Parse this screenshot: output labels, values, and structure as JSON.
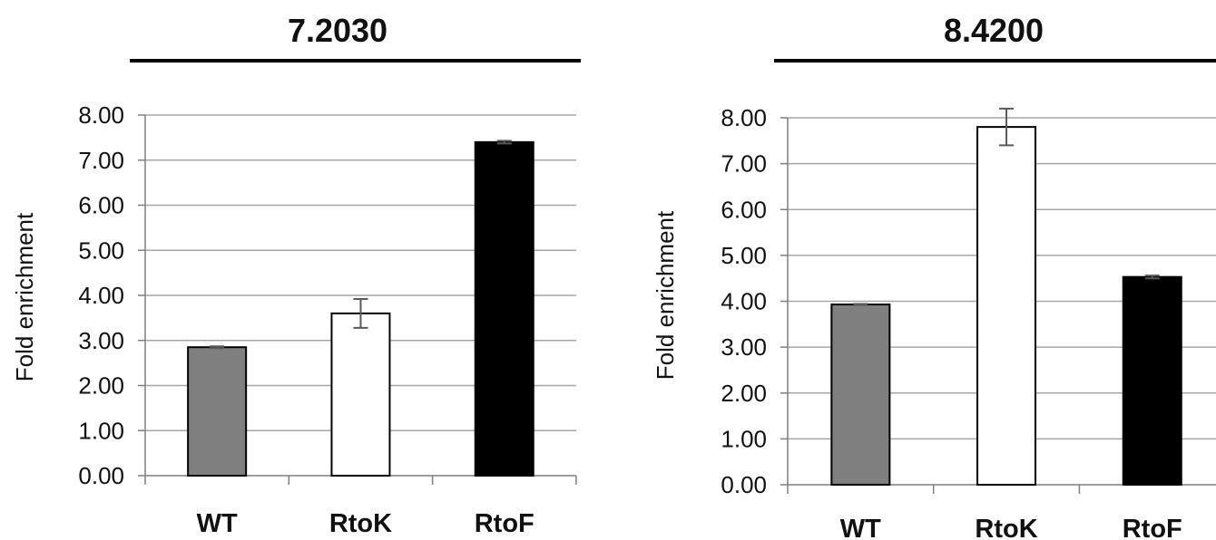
{
  "chart_data": [
    {
      "type": "bar",
      "title": "7.2030",
      "ylabel": "Fold enrichment",
      "xlabel": "",
      "categories": [
        "WT",
        "RtoK",
        "RtoF"
      ],
      "values": [
        2.85,
        3.6,
        7.4
      ],
      "errors": [
        0.02,
        0.32,
        0.03
      ],
      "bar_colors": [
        "#7f7f7f",
        "#ffffff",
        "#000000"
      ],
      "yticks": [
        "0.00",
        "1.00",
        "2.00",
        "3.00",
        "4.00",
        "5.00",
        "6.00",
        "7.00",
        "8.00"
      ],
      "ylim": [
        0,
        8
      ],
      "grid": true
    },
    {
      "type": "bar",
      "title": "8.4200",
      "ylabel": "Fold enrichment",
      "xlabel": "",
      "categories": [
        "WT",
        "RtoK",
        "RtoF"
      ],
      "values": [
        3.93,
        7.8,
        4.53
      ],
      "errors": [
        0.01,
        0.4,
        0.03
      ],
      "bar_colors": [
        "#7f7f7f",
        "#ffffff",
        "#000000"
      ],
      "yticks": [
        "0.00",
        "1.00",
        "2.00",
        "3.00",
        "4.00",
        "5.00",
        "6.00",
        "7.00",
        "8.00"
      ],
      "ylim": [
        0,
        8
      ],
      "grid": true
    }
  ]
}
